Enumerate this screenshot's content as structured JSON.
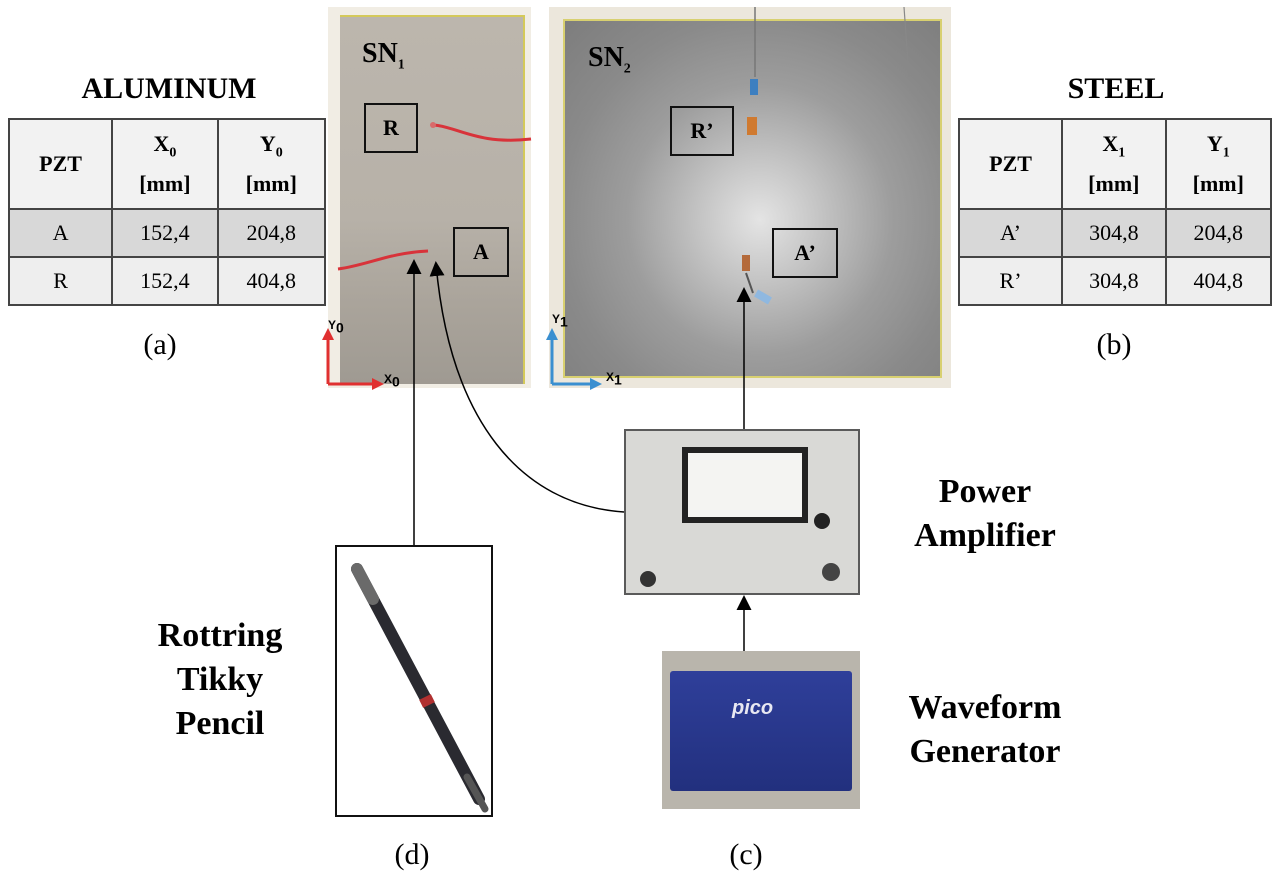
{
  "aluminum": {
    "title": "ALUMINUM",
    "headers": {
      "pzt": "PZT",
      "x": "X",
      "x_sub": "0",
      "y": "Y",
      "y_sub": "0",
      "unit": "[mm]"
    },
    "rows": [
      {
        "pzt": "A",
        "x": "152,4",
        "y": "204,8"
      },
      {
        "pzt": "R",
        "x": "152,4",
        "y": "404,8"
      }
    ],
    "caption": "(a)"
  },
  "steel": {
    "title": "STEEL",
    "headers": {
      "pzt": "PZT",
      "x": "X",
      "x_sub": "1",
      "y": "Y",
      "y_sub": "1",
      "unit": "[mm]"
    },
    "rows": [
      {
        "pzt": "A’",
        "x": "304,8",
        "y": "204,8"
      },
      {
        "pzt": "R’",
        "x": "304,8",
        "y": "404,8"
      }
    ],
    "caption": "(b)"
  },
  "plate1": {
    "name": "SN",
    "name_sub": "1",
    "sensor_r": "R",
    "sensor_a": "A",
    "axis_x": "X",
    "axis_x_sub": "0",
    "axis_y": "Y",
    "axis_y_sub": "0"
  },
  "plate2": {
    "name": "SN",
    "name_sub": "2",
    "sensor_r": "R’",
    "sensor_a": "A’",
    "axis_x": "X",
    "axis_x_sub": "1",
    "axis_y": "Y",
    "axis_y_sub": "1"
  },
  "power_amplifier": {
    "line1": "Power",
    "line2": "Amplifier",
    "caption": "(c)"
  },
  "waveform_generator": {
    "line1": "Waveform",
    "line2": "Generator",
    "brand": "pico"
  },
  "pencil": {
    "line1": "Rottring",
    "line2": "Tikky",
    "line3": "Pencil",
    "caption": "(d)"
  },
  "colors": {
    "axis0": "#e03030",
    "axis1": "#3a8fd0",
    "table_header": "#f2f2f2",
    "table_row1": "#d8d8d8",
    "table_row2": "#eeeeee"
  }
}
